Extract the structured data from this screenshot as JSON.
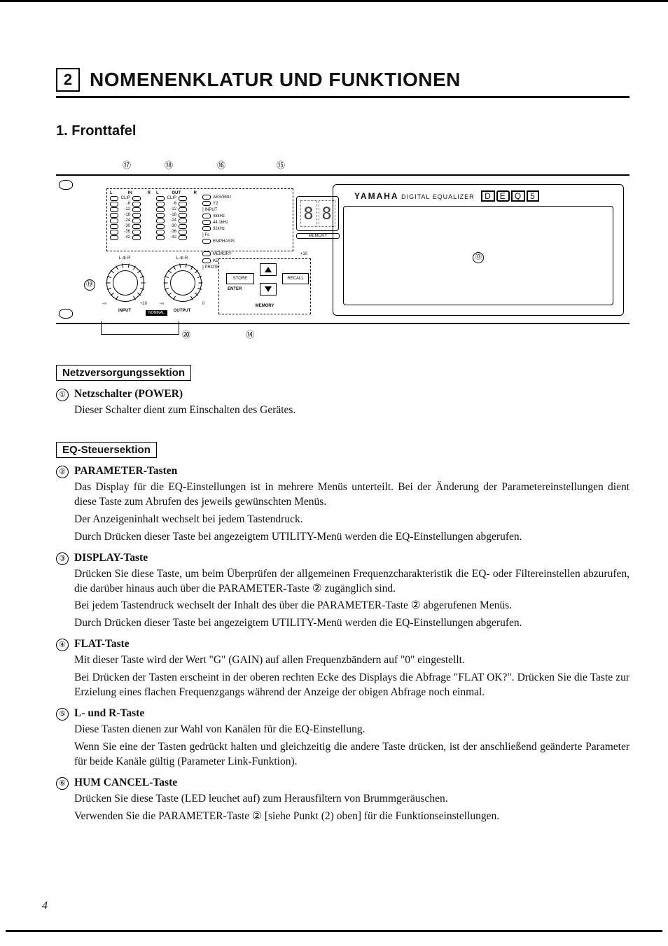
{
  "chapter_number": "2",
  "chapter_title": "NOMENENKLATUR UND FUNKTIONEN",
  "section_title": "1.  Fronttafel",
  "page_number": "4",
  "callouts_top": {
    "c17": "⑰",
    "c18": "⑱",
    "c16": "⑯",
    "c15": "⑮"
  },
  "callouts_side": {
    "c19": "⑲",
    "c13": "⑬"
  },
  "callouts_bot": {
    "c20": "⑳",
    "c14": "⑭"
  },
  "led": {
    "col_header_l": "L",
    "col_header_in": "IN",
    "col_header_r": "R",
    "col_header_out": "OUT",
    "row_labels": [
      "CLIP",
      "-6",
      "-12",
      "-18",
      "-24",
      "-30",
      "-36",
      "-42"
    ],
    "side_labels": [
      "AES/EBU",
      "Y2",
      "48kHz",
      "44.1kHz",
      "32kHz",
      "EMPHASIS",
      "MEMORY",
      "KEY"
    ],
    "grp_input": "INPUT",
    "grp_fs": "Fs",
    "grp_protect": "PROTECT",
    "seg_label": "MEMORY"
  },
  "knobs": {
    "in_top": "L-⊕-R",
    "in_minus": "-∞",
    "in_plus": "+10",
    "in_lbl": "INPUT",
    "out_top": "L-⊕-R",
    "out_minus": "-∞",
    "out_plus": "0",
    "out_lbl": "OUTPUT",
    "out_center_box": "NOMINAL"
  },
  "memory": {
    "store": "STORE",
    "enter": "ENTER",
    "recall": "RECALL",
    "label": "MEMORY",
    "plus10": "+10"
  },
  "display": {
    "brand": "YAMAHA",
    "sub": "DIGITAL EQUALIZER",
    "logo": "DEQ5"
  },
  "sections": [
    {
      "box": "Netzversorgungssektion",
      "items": [
        {
          "n": "①",
          "title": "Netzschalter (POWER)",
          "paras": [
            "Dieser Schalter dient zum Einschalten des Gerätes."
          ]
        }
      ]
    },
    {
      "box": "EQ-Steuersektion",
      "items": [
        {
          "n": "②",
          "title": "PARAMETER-Tasten",
          "paras": [
            "Das Display für die EQ-Einstellungen ist in mehrere Menüs unterteilt. Bei der Änderung der Parameterein­stellungen dient diese Taste zum Abrufen des jeweils gewünschten Menüs.",
            "Der Anzeigeninhalt wechselt bei jedem Tastendruck.",
            "Durch Drücken dieser Taste bei angezeigtem UTILITY-Menü werden die EQ-Einstellungen abgerufen."
          ]
        },
        {
          "n": "③",
          "title": "DISPLAY-Taste",
          "paras": [
            "Drücken Sie diese Taste, um beim Überprüfen der allgemeinen Frequenzcharakteristik die EQ- oder Filterein­stellen abzurufen, die darüber hinaus auch über die PARAMETER-Taste ② zugänglich sind.",
            "Bei jedem Tastendruck wechselt der Inhalt des über die PARAMETER-Taste ② abgerufenen Menüs.",
            "Durch Drücken dieser Taste bei angezeigtem UTILITY-Menü werden die EQ-Einstellungen abgerufen."
          ]
        },
        {
          "n": "④",
          "title": "FLAT-Taste",
          "paras": [
            "Mit dieser Taste wird der Wert \"G\" (GAIN) auf allen Frequenzbändern auf \"0\" eingestellt.",
            "Bei Drücken der Tasten erscheint in der oberen rechten Ecke des Displays die Abfrage \"FLAT OK?\". Drücken Sie die Taste zur Erzielung eines flachen Frequenzgangs während der Anzeige der obigen Abfrage noch einmal."
          ]
        },
        {
          "n": "⑤",
          "title": "L- und R-Taste",
          "paras": [
            "Diese Tasten dienen zur Wahl von Kanälen für die EQ-Einstellung.",
            "Wenn Sie eine der Tasten gedrückt halten und gleichzeitig die andere Taste drücken, ist der anschließend geänderte Parameter für beide Kanäle gültig (Parameter Link-Funktion)."
          ]
        },
        {
          "n": "⑥",
          "title": "HUM CANCEL-Taste",
          "paras": [
            "Drücken Sie diese Taste (LED leuchet auf) zum Herausfiltern von Brummgeräuschen.",
            "Verwenden Sie die PARAMETER-Taste ② [siehe Punkt (2) oben] für die Funktionseinstellungen."
          ]
        }
      ]
    }
  ]
}
